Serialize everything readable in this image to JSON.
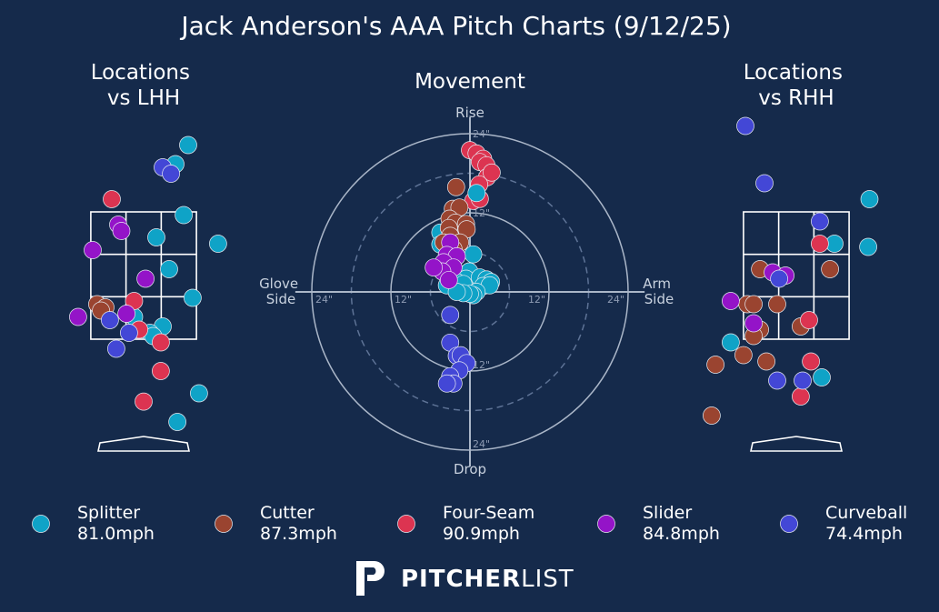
{
  "chart_data": {
    "type": "scatter",
    "title": "Jack Anderson's AAA Pitch Charts (9/12/25)",
    "colors": {
      "background": "#152a4b",
      "Splitter": "#0fa3c7",
      "Cutter": "#9a4430",
      "Four-Seam": "#dc3451",
      "Slider": "#9414c8",
      "Curveball": "#4347d6"
    },
    "pitch_types": [
      {
        "name": "Splitter",
        "speed": "81.0mph"
      },
      {
        "name": "Cutter",
        "speed": "87.3mph"
      },
      {
        "name": "Four-Seam",
        "speed": "90.9mph"
      },
      {
        "name": "Slider",
        "speed": "84.8mph"
      },
      {
        "name": "Curveball",
        "speed": "74.4mph"
      }
    ],
    "movement": {
      "title": "Movement",
      "labels": {
        "top": "Rise",
        "bottom": "Drop",
        "left": "Glove\nSide",
        "right": "Arm\nSide"
      },
      "ring_labels": [
        "12\"",
        "24\""
      ],
      "rings_inches": [
        6,
        12,
        18,
        24
      ],
      "units": "inches",
      "points": [
        {
          "t": "Four-Seam",
          "x": 0,
          "y": 21.5
        },
        {
          "t": "Four-Seam",
          "x": 1,
          "y": 21
        },
        {
          "t": "Four-Seam",
          "x": 2,
          "y": 20.2
        },
        {
          "t": "Four-Seam",
          "x": 1.5,
          "y": 19.7
        },
        {
          "t": "Four-Seam",
          "x": 2.5,
          "y": 19.2
        },
        {
          "t": "Four-Seam",
          "x": 2.6,
          "y": 17.4
        },
        {
          "t": "Four-Seam",
          "x": 3.3,
          "y": 18.1
        },
        {
          "t": "Four-Seam",
          "x": 1.4,
          "y": 16.3
        },
        {
          "t": "Four-Seam",
          "x": 0.5,
          "y": 13.8
        },
        {
          "t": "Four-Seam",
          "x": 1.5,
          "y": 14.1
        },
        {
          "t": "Splitter",
          "x": 1,
          "y": 15
        },
        {
          "t": "Splitter",
          "x": -4.5,
          "y": 9
        },
        {
          "t": "Splitter",
          "x": -4.5,
          "y": 7.2
        },
        {
          "t": "Splitter",
          "x": -2.8,
          "y": 5
        },
        {
          "t": "Splitter",
          "x": 0.5,
          "y": 5.7
        },
        {
          "t": "Splitter",
          "x": -0.1,
          "y": 3.1
        },
        {
          "t": "Splitter",
          "x": -0.6,
          "y": 2
        },
        {
          "t": "Splitter",
          "x": -2,
          "y": 1.5
        },
        {
          "t": "Splitter",
          "x": -1,
          "y": 1.2
        },
        {
          "t": "Splitter",
          "x": -3.5,
          "y": 1
        },
        {
          "t": "Splitter",
          "x": 1.5,
          "y": 2.2
        },
        {
          "t": "Splitter",
          "x": 2.5,
          "y": 1.9
        },
        {
          "t": "Splitter",
          "x": 3.2,
          "y": 1.5
        },
        {
          "t": "Splitter",
          "x": 2,
          "y": 0.9
        },
        {
          "t": "Splitter",
          "x": 3,
          "y": 1
        },
        {
          "t": "Splitter",
          "x": 1,
          "y": 0
        },
        {
          "t": "Splitter",
          "x": 0.5,
          "y": -0.5
        },
        {
          "t": "Splitter",
          "x": 0,
          "y": -0.3
        },
        {
          "t": "Splitter",
          "x": -1,
          "y": -0.2
        },
        {
          "t": "Splitter",
          "x": -2,
          "y": 0
        },
        {
          "t": "Cutter",
          "x": -2.1,
          "y": 15.9
        },
        {
          "t": "Cutter",
          "x": -2.6,
          "y": 12.6
        },
        {
          "t": "Cutter",
          "x": -1.6,
          "y": 12.8
        },
        {
          "t": "Cutter",
          "x": -3.1,
          "y": 11.1
        },
        {
          "t": "Cutter",
          "x": -2.2,
          "y": 10.5
        },
        {
          "t": "Cutter",
          "x": -3.2,
          "y": 9.7
        },
        {
          "t": "Cutter",
          "x": -0.6,
          "y": 10.3
        },
        {
          "t": "Cutter",
          "x": -0.5,
          "y": 9.5
        },
        {
          "t": "Cutter",
          "x": -3,
          "y": 8.5
        },
        {
          "t": "Cutter",
          "x": -1.5,
          "y": 7.5
        },
        {
          "t": "Cutter",
          "x": -2.5,
          "y": 6.5
        },
        {
          "t": "Cutter",
          "x": -4,
          "y": 7.5
        },
        {
          "t": "Slider",
          "x": -3,
          "y": 7.5
        },
        {
          "t": "Slider",
          "x": -3.5,
          "y": 5.6
        },
        {
          "t": "Slider",
          "x": -2,
          "y": 5.4
        },
        {
          "t": "Slider",
          "x": -4,
          "y": 4.5
        },
        {
          "t": "Slider",
          "x": -2.5,
          "y": 3.7
        },
        {
          "t": "Slider",
          "x": -4.2,
          "y": 3.1
        },
        {
          "t": "Slider",
          "x": -5.5,
          "y": 3.7
        },
        {
          "t": "Slider",
          "x": -3.2,
          "y": 1.8
        },
        {
          "t": "Curveball",
          "x": -3,
          "y": -3.5
        },
        {
          "t": "Curveball",
          "x": -3,
          "y": -7.7
        },
        {
          "t": "Curveball",
          "x": -2,
          "y": -9.7
        },
        {
          "t": "Curveball",
          "x": -1.4,
          "y": -9.6
        },
        {
          "t": "Curveball",
          "x": -0.5,
          "y": -10.8
        },
        {
          "t": "Curveball",
          "x": -1.6,
          "y": -11.9
        },
        {
          "t": "Curveball",
          "x": -3,
          "y": -12.8
        },
        {
          "t": "Curveball",
          "x": -2.5,
          "y": -13.9
        },
        {
          "t": "Curveball",
          "x": -3.5,
          "y": -13.9
        }
      ]
    },
    "locations_lhh": {
      "title": "Locations\nvs LHH",
      "zone_ft": {
        "x": [
          -0.83,
          0.83
        ],
        "z": [
          1.5,
          3.5
        ]
      },
      "points": [
        {
          "t": "Splitter",
          "x": 0.7,
          "z": 4.55
        },
        {
          "t": "Splitter",
          "x": 0.5,
          "z": 4.25
        },
        {
          "t": "Splitter",
          "x": 0.63,
          "z": 3.45
        },
        {
          "t": "Splitter",
          "x": 1.17,
          "z": 3
        },
        {
          "t": "Splitter",
          "x": 0.2,
          "z": 3.1
        },
        {
          "t": "Splitter",
          "x": 0.4,
          "z": 2.6
        },
        {
          "t": "Splitter",
          "x": 0.77,
          "z": 2.15
        },
        {
          "t": "Splitter",
          "x": 0.3,
          "z": 1.7
        },
        {
          "t": "Splitter",
          "x": -0.15,
          "z": 1.85
        },
        {
          "t": "Splitter",
          "x": 0.1,
          "z": 1.6
        },
        {
          "t": "Splitter",
          "x": 0.87,
          "z": 0.65
        },
        {
          "t": "Splitter",
          "x": 0.53,
          "z": 0.2
        },
        {
          "t": "Splitter",
          "x": 0.15,
          "z": 1.55
        },
        {
          "t": "Cutter",
          "x": -0.73,
          "z": 2.05
        },
        {
          "t": "Cutter",
          "x": -0.6,
          "z": 2
        },
        {
          "t": "Cutter",
          "x": -0.67,
          "z": 1.95
        },
        {
          "t": "Four-Seam",
          "x": -0.5,
          "z": 3.7
        },
        {
          "t": "Four-Seam",
          "x": -0.15,
          "z": 2.1
        },
        {
          "t": "Four-Seam",
          "x": -0.07,
          "z": 1.65
        },
        {
          "t": "Four-Seam",
          "x": 0.27,
          "z": 1.45
        },
        {
          "t": "Four-Seam",
          "x": 0.27,
          "z": 1
        },
        {
          "t": "Four-Seam",
          "x": 0,
          "z": 0.52
        },
        {
          "t": "Slider",
          "x": -0.4,
          "z": 3.3
        },
        {
          "t": "Slider",
          "x": -0.35,
          "z": 3.2
        },
        {
          "t": "Slider",
          "x": -0.8,
          "z": 2.9
        },
        {
          "t": "Slider",
          "x": 0.03,
          "z": 2.45
        },
        {
          "t": "Slider",
          "x": -1.03,
          "z": 1.85
        },
        {
          "t": "Slider",
          "x": -0.27,
          "z": 1.9
        },
        {
          "t": "Curveball",
          "x": 0.3,
          "z": 4.2
        },
        {
          "t": "Curveball",
          "x": 0.43,
          "z": 4.1
        },
        {
          "t": "Curveball",
          "x": -0.53,
          "z": 1.8
        },
        {
          "t": "Curveball",
          "x": -0.23,
          "z": 1.6
        },
        {
          "t": "Curveball",
          "x": -0.43,
          "z": 1.35
        }
      ]
    },
    "locations_rhh": {
      "title": "Locations\nvs RHH",
      "zone_ft": {
        "x": [
          -0.83,
          0.83
        ],
        "z": [
          1.5,
          3.5
        ]
      },
      "points": [
        {
          "t": "Splitter",
          "x": 1.15,
          "z": 3.7
        },
        {
          "t": "Splitter",
          "x": 1.13,
          "z": 2.95
        },
        {
          "t": "Splitter",
          "x": 0.6,
          "z": 3
        },
        {
          "t": "Splitter",
          "x": -1.03,
          "z": 1.45
        },
        {
          "t": "Splitter",
          "x": 0.4,
          "z": 0.9
        },
        {
          "t": "Cutter",
          "x": -0.57,
          "z": 2.6
        },
        {
          "t": "Cutter",
          "x": -0.77,
          "z": 2.05
        },
        {
          "t": "Cutter",
          "x": -0.67,
          "z": 2.05
        },
        {
          "t": "Cutter",
          "x": -0.3,
          "z": 2.05
        },
        {
          "t": "Cutter",
          "x": 0.53,
          "z": 2.6
        },
        {
          "t": "Cutter",
          "x": -0.57,
          "z": 1.65
        },
        {
          "t": "Cutter",
          "x": -0.67,
          "z": 1.55
        },
        {
          "t": "Cutter",
          "x": 0.07,
          "z": 1.7
        },
        {
          "t": "Cutter",
          "x": -0.83,
          "z": 1.25
        },
        {
          "t": "Cutter",
          "x": -1.27,
          "z": 1.1
        },
        {
          "t": "Cutter",
          "x": -0.47,
          "z": 1.15
        },
        {
          "t": "Cutter",
          "x": -1.33,
          "z": 0.3
        },
        {
          "t": "Four-Seam",
          "x": 0.37,
          "z": 3
        },
        {
          "t": "Four-Seam",
          "x": 0.2,
          "z": 1.8
        },
        {
          "t": "Four-Seam",
          "x": 0.23,
          "z": 1.15
        },
        {
          "t": "Four-Seam",
          "x": 0.07,
          "z": 0.6
        },
        {
          "t": "Slider",
          "x": -0.37,
          "z": 2.55
        },
        {
          "t": "Slider",
          "x": -0.17,
          "z": 2.5
        },
        {
          "t": "Slider",
          "x": -1.03,
          "z": 2.1
        },
        {
          "t": "Slider",
          "x": -0.67,
          "z": 1.75
        },
        {
          "t": "Curveball",
          "x": -0.8,
          "z": 4.85
        },
        {
          "t": "Curveball",
          "x": -0.5,
          "z": 3.95
        },
        {
          "t": "Curveball",
          "x": 0.37,
          "z": 3.35
        },
        {
          "t": "Curveball",
          "x": -0.27,
          "z": 2.45
        },
        {
          "t": "Curveball",
          "x": -0.3,
          "z": 0.85
        },
        {
          "t": "Curveball",
          "x": 0.1,
          "z": 0.85
        }
      ]
    }
  },
  "brand": {
    "bold": "PITCHER",
    "light": "LIST"
  }
}
